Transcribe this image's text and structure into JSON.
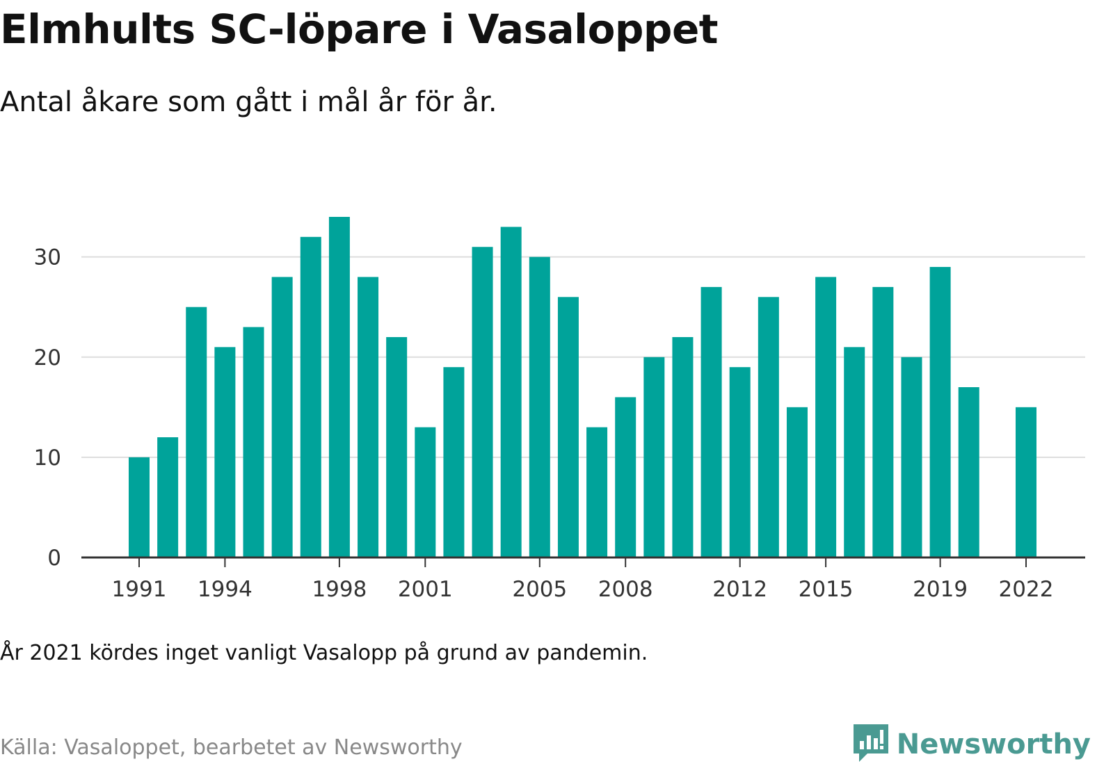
{
  "title": "Elmhults SC-löpare i Vasaloppet",
  "subtitle": "Antal åkare som gått i mål år för år.",
  "note": "År 2021 kördes inget vanligt Vasalopp på grund av pandemin.",
  "source": "Källa: Vasaloppet, bearbetet av Newsworthy",
  "brand": {
    "name": "Newsworthy",
    "icon": "newsworthy-logo-icon",
    "color": "#4a9a92"
  },
  "chart_data": {
    "type": "bar",
    "color": "#00a39a",
    "grid": true,
    "ylim": [
      0,
      34
    ],
    "yticks": [
      0,
      10,
      20,
      30
    ],
    "xtick_labels": [
      "1991",
      "1994",
      "1998",
      "2001",
      "2005",
      "2008",
      "2012",
      "2015",
      "2019",
      "2022"
    ],
    "categories": [
      1991,
      1992,
      1993,
      1994,
      1995,
      1996,
      1997,
      1998,
      1999,
      2000,
      2001,
      2002,
      2003,
      2004,
      2005,
      2006,
      2007,
      2008,
      2009,
      2010,
      2011,
      2012,
      2013,
      2014,
      2015,
      2016,
      2017,
      2018,
      2019,
      2020,
      2021,
      2022
    ],
    "values": [
      10,
      12,
      25,
      21,
      23,
      28,
      32,
      34,
      28,
      22,
      13,
      19,
      31,
      33,
      30,
      26,
      13,
      16,
      20,
      22,
      27,
      19,
      26,
      15,
      28,
      21,
      27,
      20,
      29,
      17,
      null,
      15
    ],
    "xlabel": "",
    "ylabel": ""
  }
}
